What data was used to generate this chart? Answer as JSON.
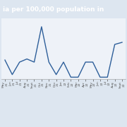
{
  "title": "ia per 100,000 population in",
  "title_bg": "#5b7bab",
  "title_color": "#ffffff",
  "x_labels": [
    "May\n21",
    "Jun\n21",
    "Jul\n21",
    "Aug\n21",
    "Sept\n21",
    "Oct\n21",
    "Nov\n21",
    "Dec\n21",
    "Jan\n22",
    "Feb\n22",
    "Mar\n22",
    "Apr\n22",
    "May\n22",
    "Jun\n22",
    "Jul\n22",
    "Aug\n22",
    "Sept\n22"
  ],
  "values": [
    1.8,
    0.4,
    1.6,
    1.9,
    1.6,
    5.0,
    1.6,
    0.4,
    1.6,
    0.15,
    0.15,
    1.6,
    1.6,
    0.15,
    0.15,
    3.3,
    3.5
  ],
  "line_color": "#2e5f9a",
  "bg_color": "#dde6f0",
  "plot_bg": "#eef2f8",
  "ylim": [
    0,
    5.8
  ],
  "grid_color": "#c0ccd8"
}
